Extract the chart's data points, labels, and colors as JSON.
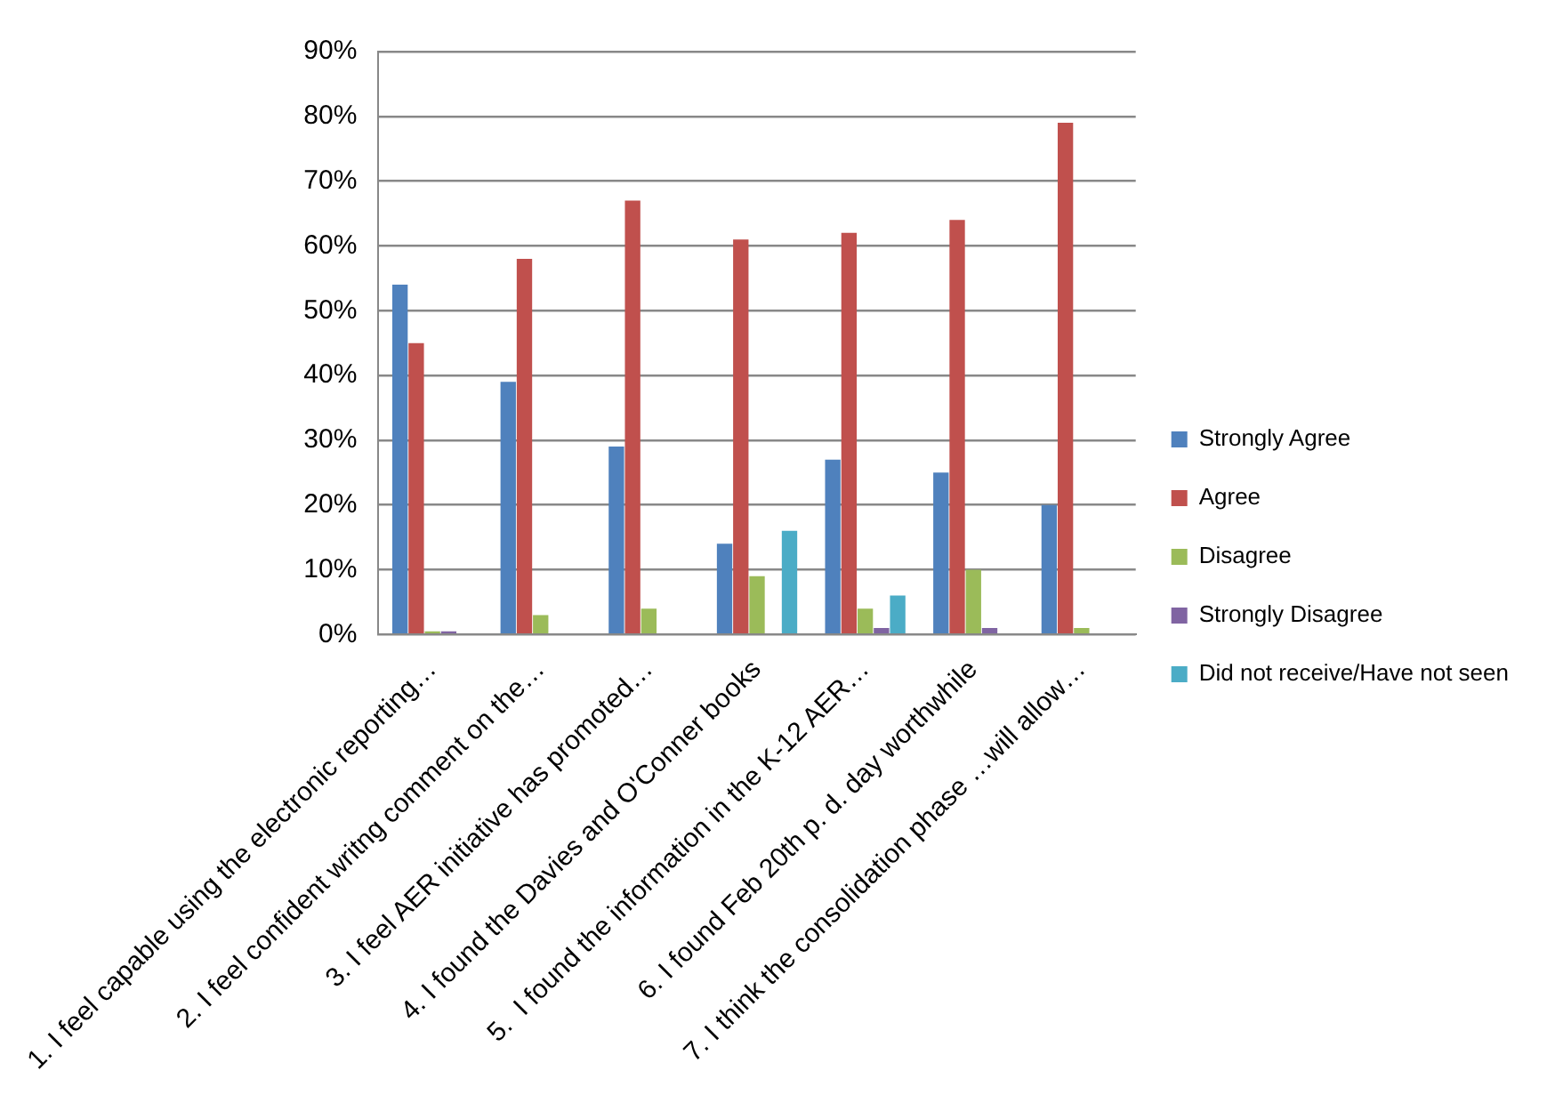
{
  "chart_data": {
    "type": "bar",
    "categories": [
      "1. I feel capable using the electronic reporting…",
      "2. I feel confident writng comment on the…",
      "3. I feel AER initiative has promoted…",
      "4. I found the Davies and O'Conner books",
      "5.  I found the information in the K-12 AER…",
      "6. I found Feb 20th p. d. day worthwhile",
      "7. I think the consolidation phase …will allow…"
    ],
    "series": [
      {
        "name": "Strongly Agree",
        "color": "#4f81bd",
        "values": [
          54,
          39,
          29,
          14,
          27,
          25,
          20
        ]
      },
      {
        "name": "Agree",
        "color": "#c0504d",
        "values": [
          45,
          58,
          67,
          61,
          62,
          64,
          79
        ]
      },
      {
        "name": "Disagree",
        "color": "#9bbb59",
        "values": [
          0.5,
          3,
          4,
          9,
          4,
          10,
          1
        ]
      },
      {
        "name": "Strongly Disagree",
        "color": "#8064a2",
        "values": [
          0.5,
          0,
          0,
          0,
          1,
          1,
          0
        ]
      },
      {
        "name": "Did not receive/Have not seen",
        "color": "#4bacc6",
        "values": [
          0,
          0,
          0,
          16,
          6,
          0,
          0
        ]
      }
    ],
    "ylim": [
      0,
      90
    ],
    "yticks": [
      {
        "value": 0,
        "label": "0%"
      },
      {
        "value": 10,
        "label": "10%"
      },
      {
        "value": 20,
        "label": "20%"
      },
      {
        "value": 30,
        "label": "30%"
      },
      {
        "value": 40,
        "label": "40%"
      },
      {
        "value": 50,
        "label": "50%"
      },
      {
        "value": 60,
        "label": "60%"
      },
      {
        "value": 70,
        "label": "70%"
      },
      {
        "value": 80,
        "label": "80%"
      },
      {
        "value": 90,
        "label": "90%"
      }
    ],
    "grid": "y",
    "legend": "right"
  }
}
